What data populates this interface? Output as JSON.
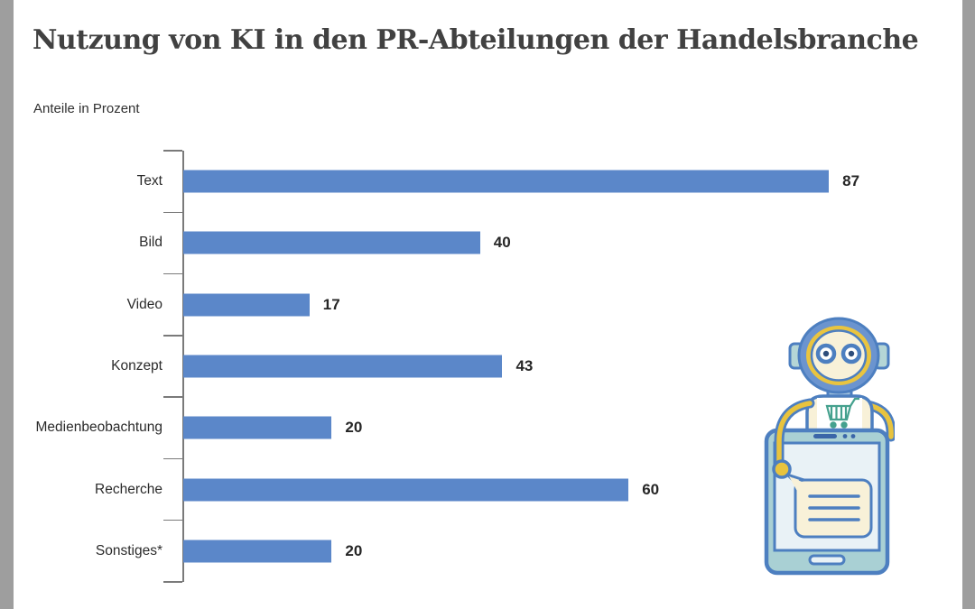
{
  "page": {
    "title": "Nutzung von KI in den PR-Abteilungen der Handelsbranche",
    "subtitle": "Anteile in Prozent"
  },
  "chart_data": {
    "type": "bar",
    "orientation": "horizontal",
    "title": "Nutzung von KI in den PR-Abteilungen der Handelsbranche",
    "subtitle": "Anteile in Prozent",
    "categories": [
      "Text",
      "Bild",
      "Video",
      "Konzept",
      "Medienbeobachtung",
      "Recherche",
      "Sonstiges*"
    ],
    "values": [
      87,
      40,
      17,
      43,
      20,
      60,
      20
    ],
    "xlabel": "",
    "ylabel": "",
    "xlim": [
      0,
      100
    ],
    "grid": false,
    "legend": false,
    "value_labels": "end-of-bar",
    "bar_color": "#5b87c9"
  },
  "colors": {
    "bar": "#5b87c9",
    "axis": "#7a7a7a",
    "title_text": "#414141",
    "body_text": "#2b2b2b",
    "side_strip": "#9e9e9e",
    "illustration_outline_blue": "#4d7fc0",
    "illustration_yellow": "#e8c33e",
    "illustration_cream": "#f8f1d8",
    "illustration_teal_frame": "#a9d0d4",
    "illustration_screen": "#e9f2f6",
    "illustration_cart_teal": "#45a18e"
  },
  "illustration": {
    "name": "robot-holding-tablet-with-shopping-cart-and-chat-bubble"
  }
}
